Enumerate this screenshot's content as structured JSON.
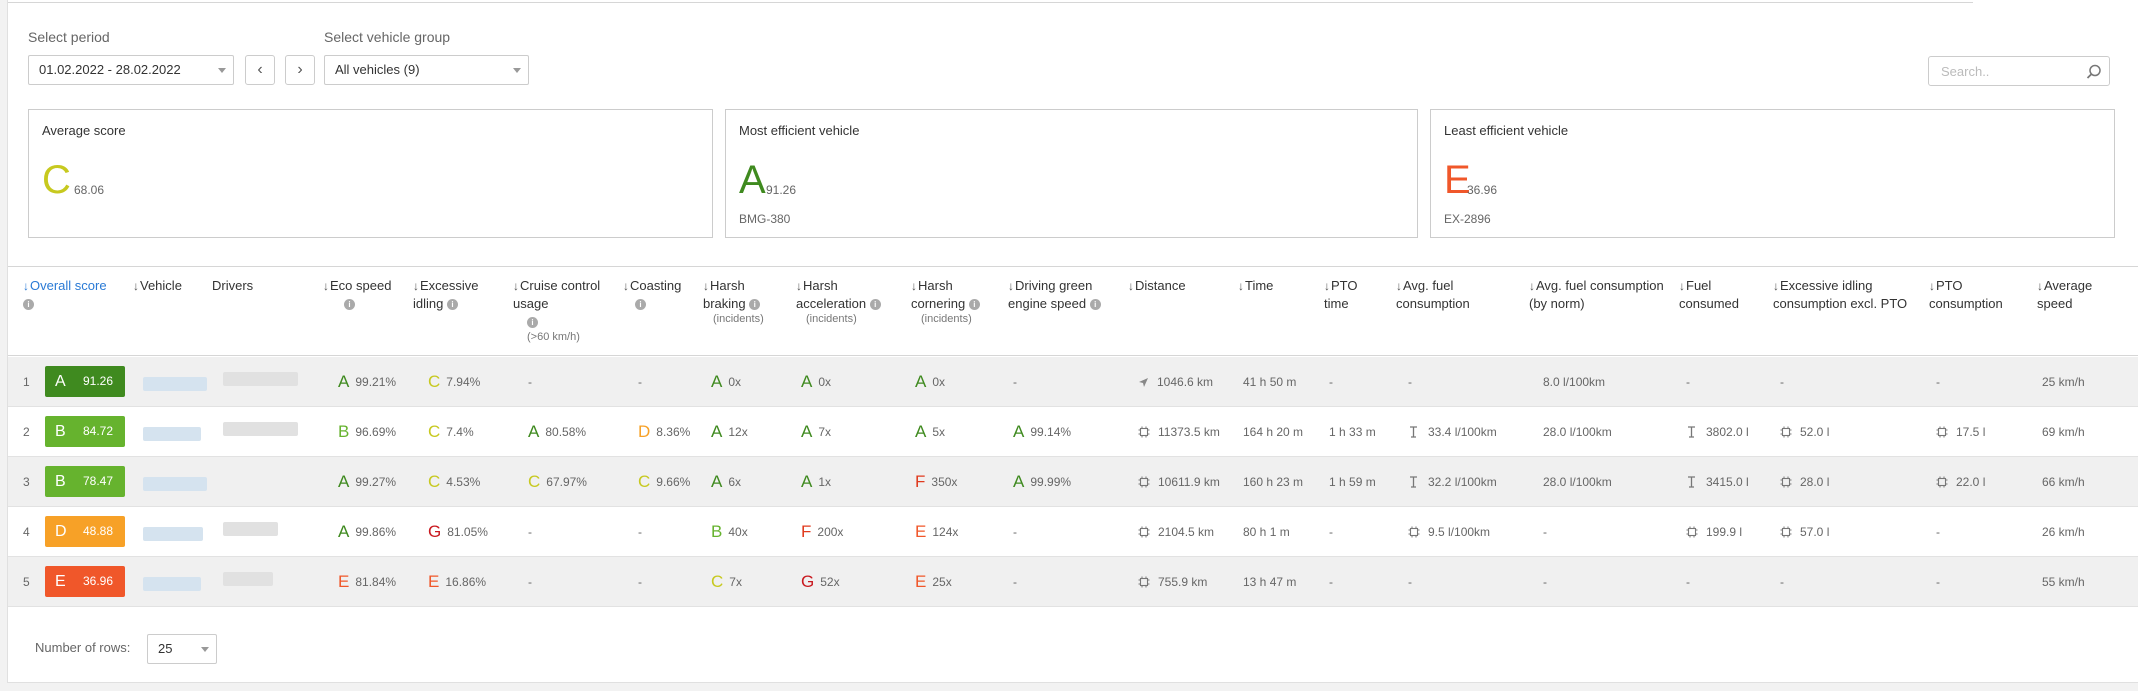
{
  "filters": {
    "period_label": "Select period",
    "period_value": "01.02.2022 - 28.02.2022",
    "group_label": "Select vehicle group",
    "group_value": "All vehicles (9)",
    "prev_glyph": "‹",
    "next_glyph": "›",
    "search_placeholder": "Search.."
  },
  "cards": {
    "average": {
      "title": "Average score",
      "grade": "C",
      "score": "68.06",
      "color": "#c7c91f"
    },
    "most": {
      "title": "Most efficient vehicle",
      "grade": "A",
      "score": "91.26",
      "vehicle": "BMG-380",
      "color": "#3f8a1f"
    },
    "least": {
      "title": "Least efficient vehicle",
      "grade": "E",
      "score": "36.96",
      "vehicle": "EX-2896",
      "color": "#f0572a"
    }
  },
  "columns": {
    "overall": "Overall score",
    "vehicle": "Vehicle",
    "drivers": "Drivers",
    "eco": "Eco speed",
    "idling": "Excessive idling",
    "cruise": "Cruise control usage",
    "cruise_sub": "(>60 km/h)",
    "coasting": "Coasting",
    "braking": "Harsh braking",
    "acceleration": "Harsh acceleration",
    "cornering": "Harsh cornering",
    "incidents": "(incidents)",
    "green": "Driving green engine speed",
    "distance": "Distance",
    "time": "Time",
    "pto_time": "PTO time",
    "avg_fuel": "Avg. fuel consumption",
    "avg_fuel_norm": "Avg. fuel consumption (by norm)",
    "fuel": "Fuel consumed",
    "idling_excl": "Excessive idling consumption excl. PTO",
    "pto_cons": "PTO consumption",
    "avg_speed": "Average speed"
  },
  "colors": {
    "A": "#3f8a1f",
    "B": "#66b32e",
    "C": "#c7c91f",
    "D": "#f7a127",
    "E": "#f0572a",
    "F": "#e03a1e",
    "G": "#c9191f"
  },
  "rows": [
    {
      "num": "1",
      "grade": "A",
      "score": "91.26",
      "badge_color": "#3f8a1f",
      "eco": {
        "g": "A",
        "v": "99.21%"
      },
      "idling": {
        "g": "C",
        "v": "7.94%"
      },
      "cruise": {
        "g": "",
        "v": "-"
      },
      "coasting": {
        "g": "",
        "v": "-"
      },
      "braking": {
        "g": "A",
        "v": "0x"
      },
      "accel": {
        "g": "A",
        "v": "0x"
      },
      "corner": {
        "g": "A",
        "v": "0x"
      },
      "green": {
        "g": "",
        "v": "-"
      },
      "distance": "1046.6 km",
      "time": "41 h 50 m",
      "pto": "-",
      "avg_fuel": "-",
      "avg_norm": "8.0 l/100km",
      "fuel": "-",
      "idl_excl": "-",
      "pto_cons": "-",
      "speed": "25 km/h"
    },
    {
      "num": "2",
      "grade": "B",
      "score": "84.72",
      "badge_color": "#66b32e",
      "eco": {
        "g": "B",
        "v": "96.69%"
      },
      "idling": {
        "g": "C",
        "v": "7.4%"
      },
      "cruise": {
        "g": "A",
        "v": "80.58%"
      },
      "coasting": {
        "g": "D",
        "v": "8.36%"
      },
      "braking": {
        "g": "A",
        "v": "12x"
      },
      "accel": {
        "g": "A",
        "v": "7x"
      },
      "corner": {
        "g": "A",
        "v": "5x"
      },
      "green": {
        "g": "A",
        "v": "99.14%"
      },
      "distance": "11373.5 km",
      "time": "164 h 20 m",
      "pto": "1 h 33 m",
      "avg_fuel": "33.4 l/100km",
      "avg_norm": "28.0 l/100km",
      "fuel": "3802.0 l",
      "idl_excl": "52.0 l",
      "pto_cons": "17.5 l",
      "speed": "69 km/h"
    },
    {
      "num": "3",
      "grade": "B",
      "score": "78.47",
      "badge_color": "#66b32e",
      "eco": {
        "g": "A",
        "v": "99.27%"
      },
      "idling": {
        "g": "C",
        "v": "4.53%"
      },
      "cruise": {
        "g": "C",
        "v": "67.97%"
      },
      "coasting": {
        "g": "C",
        "v": "9.66%"
      },
      "braking": {
        "g": "A",
        "v": "6x"
      },
      "accel": {
        "g": "A",
        "v": "1x"
      },
      "corner": {
        "g": "F",
        "v": "350x"
      },
      "green": {
        "g": "A",
        "v": "99.99%"
      },
      "distance": "10611.9 km",
      "time": "160 h 23 m",
      "pto": "1 h 59 m",
      "avg_fuel": "32.2 l/100km",
      "avg_norm": "28.0 l/100km",
      "fuel": "3415.0 l",
      "idl_excl": "28.0 l",
      "pto_cons": "22.0 l",
      "speed": "66 km/h"
    },
    {
      "num": "4",
      "grade": "D",
      "score": "48.88",
      "badge_color": "#f7a127",
      "eco": {
        "g": "A",
        "v": "99.86%"
      },
      "idling": {
        "g": "G",
        "v": "81.05%"
      },
      "cruise": {
        "g": "",
        "v": "-"
      },
      "coasting": {
        "g": "",
        "v": "-"
      },
      "braking": {
        "g": "B",
        "v": "40x"
      },
      "accel": {
        "g": "F",
        "v": "200x"
      },
      "corner": {
        "g": "E",
        "v": "124x"
      },
      "green": {
        "g": "",
        "v": "-"
      },
      "distance": "2104.5 km",
      "time": "80 h 1 m",
      "pto": "-",
      "avg_fuel": "9.5 l/100km",
      "avg_norm": "-",
      "fuel": "199.9 l",
      "idl_excl": "57.0 l",
      "pto_cons": "-",
      "speed": "26 km/h"
    },
    {
      "num": "5",
      "grade": "E",
      "score": "36.96",
      "badge_color": "#f0572a",
      "eco": {
        "g": "E",
        "v": "81.84%"
      },
      "idling": {
        "g": "E",
        "v": "16.86%"
      },
      "cruise": {
        "g": "",
        "v": "-"
      },
      "coasting": {
        "g": "",
        "v": "-"
      },
      "braking": {
        "g": "C",
        "v": "7x"
      },
      "accel": {
        "g": "G",
        "v": "52x"
      },
      "corner": {
        "g": "E",
        "v": "25x"
      },
      "green": {
        "g": "",
        "v": "-"
      },
      "distance": "755.9 km",
      "time": "13 h 47 m",
      "pto": "-",
      "avg_fuel": "-",
      "avg_norm": "-",
      "fuel": "-",
      "idl_excl": "-",
      "pto_cons": "-",
      "speed": "55 km/h"
    }
  ],
  "footer": {
    "rows_label": "Number of rows:",
    "rows_value": "25"
  }
}
